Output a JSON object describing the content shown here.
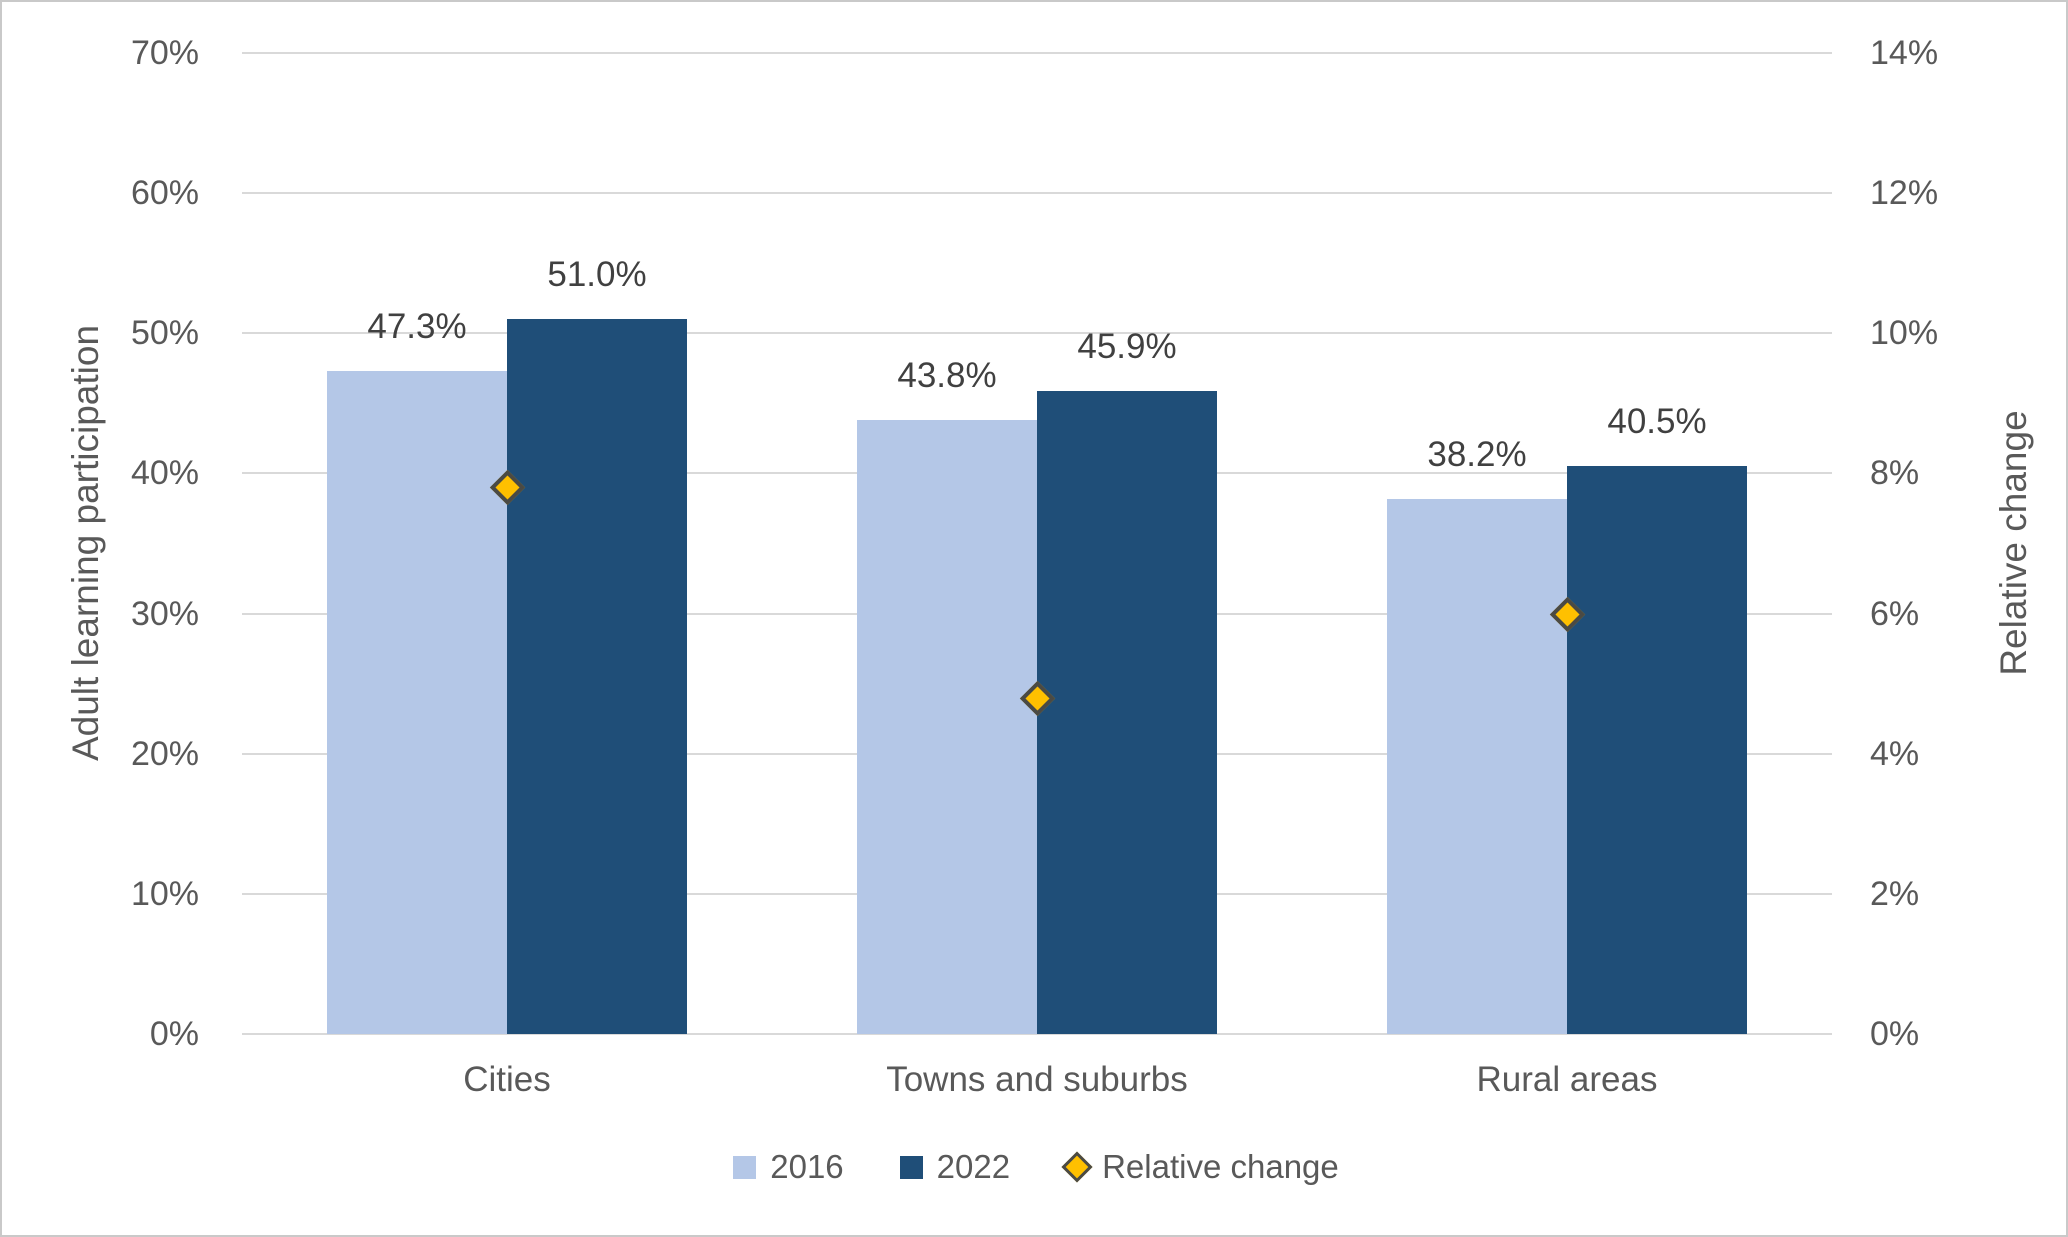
{
  "chart_data": {
    "type": "bar",
    "subtype": "combo-bar-with-scatter-markers",
    "categories": [
      "Cities",
      "Towns and suburbs",
      "Rural areas"
    ],
    "series": [
      {
        "name": "2016",
        "type": "bar",
        "axis": "left",
        "values": [
          47.3,
          43.8,
          38.2
        ],
        "data_labels": [
          "47.3%",
          "43.8%",
          "38.2%"
        ],
        "color": "#B4C7E7"
      },
      {
        "name": "2022",
        "type": "bar",
        "axis": "left",
        "values": [
          51.0,
          45.9,
          40.5
        ],
        "data_labels": [
          "51.0%",
          "45.9%",
          "40.5%"
        ],
        "color": "#1F4E78"
      },
      {
        "name": "Relative change",
        "type": "scatter",
        "marker": "diamond",
        "axis": "right",
        "values": [
          7.8,
          4.8,
          6.0
        ],
        "color": "#FFC000",
        "marker_border_color": "#4A4A45"
      }
    ],
    "left_axis": {
      "title": "Adult learning participation",
      "min": 0,
      "max": 70,
      "step": 10,
      "ticks": [
        "0%",
        "10%",
        "20%",
        "30%",
        "40%",
        "50%",
        "60%",
        "70%"
      ]
    },
    "right_axis": {
      "title": "Relative change",
      "min": 0,
      "max": 14,
      "step": 2,
      "ticks": [
        "0%",
        "2%",
        "4%",
        "6%",
        "8%",
        "10%",
        "12%",
        "14%"
      ]
    },
    "legend": {
      "position": "bottom",
      "entries": [
        "2016",
        "2022",
        "Relative change"
      ]
    },
    "grid": true
  },
  "colors": {
    "gridline": "#D9D9D9",
    "tick_text": "#595959",
    "axis_title_text": "#595959",
    "data_label_text": "#404040",
    "category_text": "#595959",
    "legend_text": "#595959",
    "background": "#FFFFFF",
    "page_border": "#C9C9C9"
  }
}
